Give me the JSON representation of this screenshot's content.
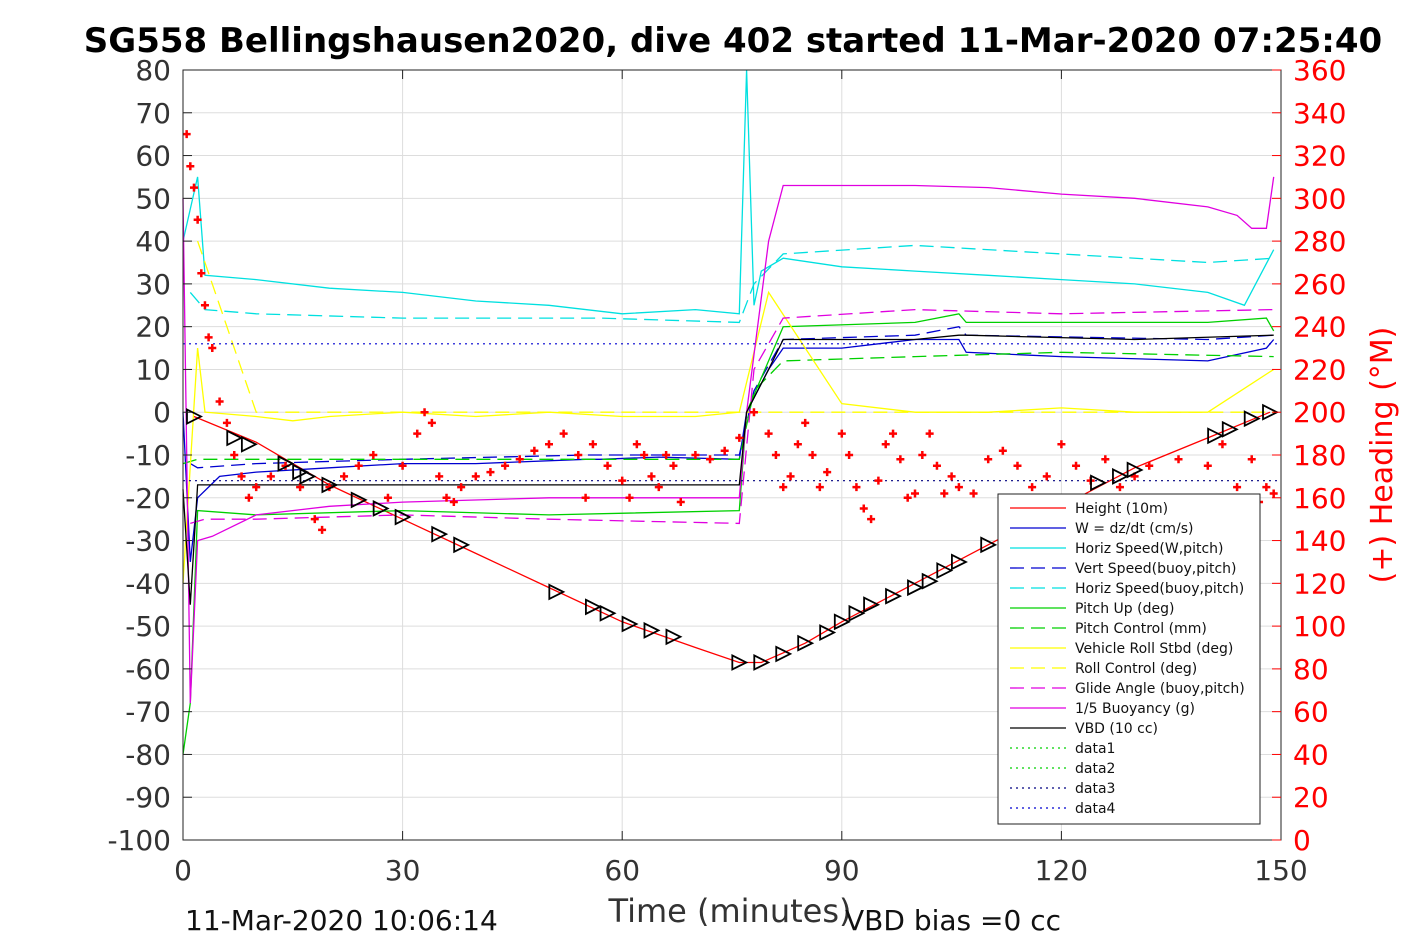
{
  "chart_data": {
    "type": "line",
    "title": "SG558 Bellingshausen2020, dive 402 started 11-Mar-2020 07:25:40",
    "xlabel": "Time (minutes)",
    "ylabel_right": "(+) Heading (°M)",
    "footer_left": "11-Mar-2020 10:06:14",
    "footer_right": "VBD bias =0 cc",
    "xlim": [
      0,
      150
    ],
    "ylim": [
      -100,
      80
    ],
    "ylim_right": [
      0,
      360
    ],
    "x_ticks": [
      "0",
      "30",
      "60",
      "90",
      "120",
      "150"
    ],
    "y_ticks": [
      "80",
      "70",
      "60",
      "50",
      "40",
      "30",
      "20",
      "10",
      "0",
      "-10",
      "-20",
      "-30",
      "-40",
      "-50",
      "-60",
      "-70",
      "-80",
      "-90",
      "-100"
    ],
    "y_ticks_right": [
      "360",
      "340",
      "320",
      "300",
      "280",
      "260",
      "240",
      "220",
      "200",
      "180",
      "160",
      "140",
      "120",
      "100",
      "80",
      "60",
      "40",
      "20",
      "0"
    ],
    "grid": true,
    "legend_position": "lower-right",
    "series": [
      {
        "name": "Height (10m)",
        "color": "#ff0000",
        "style": "solid",
        "x": [
          1.5,
          10,
          20,
          30,
          40,
          50,
          60,
          70,
          76,
          79,
          85,
          90,
          100,
          110,
          120,
          130,
          140,
          148.5
        ],
        "y": [
          -1,
          -7,
          -17,
          -25,
          -33,
          -41,
          -49,
          -55,
          -58.5,
          -58.5,
          -54,
          -49,
          -40,
          -31,
          -22,
          -13,
          -6,
          0
        ]
      },
      {
        "name": "W = dz/dt (cm/s)",
        "color": "#0000d0",
        "style": "solid",
        "x": [
          0,
          1,
          2,
          5,
          10,
          20,
          30,
          40,
          55,
          57,
          65,
          76,
          77,
          80,
          82,
          90,
          100,
          106,
          107,
          120,
          140,
          148,
          149
        ],
        "y": [
          0,
          -35,
          -20,
          -15,
          -14,
          -13,
          -12,
          -12,
          -11,
          -11,
          -10.5,
          -11,
          0,
          10,
          15,
          15,
          17,
          17,
          14,
          13,
          12,
          15,
          17
        ]
      },
      {
        "name": "Horiz Speed(W,pitch)",
        "color": "#00e0e0",
        "style": "solid",
        "x": [
          0,
          2,
          3,
          10,
          20,
          30,
          40,
          50,
          60,
          70,
          76,
          77,
          78,
          79,
          82,
          90,
          100,
          110,
          120,
          130,
          140,
          145,
          149
        ],
        "y": [
          40,
          55,
          32,
          31,
          29,
          28,
          26,
          25,
          23,
          24,
          23,
          80,
          25,
          33,
          36,
          34,
          33,
          32,
          31,
          30,
          28,
          25,
          38
        ]
      },
      {
        "name": "Vert Speed(buoy,pitch)",
        "color": "#0000d0",
        "style": "dash",
        "x": [
          1,
          2,
          10,
          30,
          55,
          57,
          76,
          78,
          82,
          100,
          106,
          107,
          140,
          149
        ],
        "y": [
          -12,
          -13,
          -12,
          -11,
          -10,
          -10,
          -10,
          5,
          17,
          18,
          20,
          18,
          17,
          18
        ]
      },
      {
        "name": "Horiz Speed(buoy,pitch)",
        "color": "#00e0e0",
        "style": "dash",
        "x": [
          1,
          3,
          10,
          30,
          55,
          57,
          76,
          78,
          82,
          100,
          140,
          149
        ],
        "y": [
          28,
          24,
          23,
          22,
          22,
          22,
          21,
          30,
          37,
          39,
          35,
          36
        ]
      },
      {
        "name": "Pitch Up (deg)",
        "color": "#00d000",
        "style": "solid",
        "x": [
          0,
          1,
          2,
          10,
          30,
          50,
          76,
          77,
          82,
          100,
          106,
          107,
          120,
          140,
          148,
          149
        ],
        "y": [
          -80,
          -68,
          -23,
          -24,
          -23,
          -24,
          -23,
          0,
          20,
          21,
          23,
          21,
          21,
          21,
          22,
          19
        ]
      },
      {
        "name": "Pitch Control (mm)",
        "color": "#00d000",
        "style": "dash",
        "x": [
          0,
          2,
          10,
          30,
          50,
          76,
          78,
          82,
          100,
          120,
          149
        ],
        "y": [
          -12,
          -11,
          -11,
          -11,
          -11,
          -11,
          5,
          12,
          13,
          14,
          13
        ]
      },
      {
        "name": "Vehicle Roll Stbd (deg)",
        "color": "#ffff00",
        "style": "solid",
        "x": [
          0,
          2,
          3,
          10,
          15,
          20,
          30,
          40,
          50,
          60,
          70,
          76,
          80,
          90,
          100,
          110,
          120,
          130,
          140,
          149
        ],
        "y": [
          -40,
          15,
          0,
          -1,
          -2,
          -1,
          0,
          -1,
          0,
          -1,
          -1,
          0,
          28,
          2,
          0,
          0,
          1,
          0,
          0,
          10
        ]
      },
      {
        "name": "Roll Control (deg)",
        "color": "#ffff00",
        "style": "dash",
        "x": [
          2,
          10,
          20,
          30,
          40,
          50,
          60,
          70,
          76,
          80,
          90,
          100,
          110,
          120,
          130,
          140,
          149
        ],
        "y": [
          40,
          0,
          0,
          0,
          0,
          0,
          0,
          0,
          0,
          0,
          0,
          0,
          0,
          0,
          0,
          0,
          0
        ]
      },
      {
        "name": "Glide Angle (buoy,pitch)",
        "color": "#e000e0",
        "style": "dash",
        "x": [
          1,
          3,
          10,
          30,
          50,
          76,
          78,
          82,
          100,
          120,
          149
        ],
        "y": [
          -26,
          -25,
          -25,
          -24,
          -25,
          -26,
          10,
          22,
          24,
          23,
          24
        ]
      },
      {
        "name": "1/5 Buoyancy (g)",
        "color": "#e000e0",
        "style": "solid",
        "x": [
          0,
          1,
          2,
          4,
          10,
          20,
          30,
          50,
          76,
          77,
          80,
          82,
          90,
          100,
          110,
          120,
          130,
          140,
          144,
          146,
          148,
          149
        ],
        "y": [
          50,
          -68,
          -30,
          -29,
          -24,
          -22,
          -21,
          -20,
          -20,
          0,
          40,
          53,
          53,
          53,
          52.5,
          51,
          50,
          48,
          46,
          43,
          43,
          55
        ]
      },
      {
        "name": "VBD (10 cc)",
        "color": "#000000",
        "style": "solid",
        "x": [
          0,
          1,
          2,
          30,
          50,
          76,
          77,
          80,
          82,
          100,
          106,
          107,
          130,
          149
        ],
        "y": [
          -18,
          -45,
          -17,
          -17,
          -17,
          -17,
          0,
          10,
          17,
          17,
          18,
          18,
          17,
          18
        ]
      },
      {
        "name": "data1",
        "color": "#00d000",
        "style": "dot",
        "x": [],
        "y": []
      },
      {
        "name": "data2",
        "color": "#00d000",
        "style": "dot",
        "x": [],
        "y": []
      },
      {
        "name": "data3",
        "color": "#000080",
        "style": "dot",
        "x": [
          0,
          150
        ],
        "y": [
          -16,
          -16
        ]
      },
      {
        "name": "data4",
        "color": "#0000d0",
        "style": "dot",
        "x": [
          0,
          150
        ],
        "y": [
          16,
          16
        ]
      }
    ],
    "heading_markers": {
      "color": "#ff0000",
      "axis": "right",
      "x": [
        0.5,
        1,
        1.5,
        2,
        2.5,
        3,
        3.5,
        4,
        5,
        6,
        7,
        8,
        9,
        10,
        12,
        14,
        16,
        18,
        19,
        20,
        22,
        24,
        26,
        28,
        30,
        32,
        33,
        34,
        35,
        36,
        37,
        38,
        40,
        42,
        44,
        46,
        48,
        50,
        52,
        54,
        55,
        56,
        58,
        60,
        61,
        62,
        63,
        64,
        65,
        66,
        67,
        68,
        70,
        72,
        74,
        76,
        78,
        80,
        81,
        82,
        83,
        84,
        85,
        86,
        87,
        88,
        90,
        91,
        92,
        93,
        94,
        95,
        96,
        97,
        98,
        99,
        100,
        101,
        102,
        103,
        104,
        105,
        106,
        108,
        110,
        112,
        114,
        116,
        118,
        120,
        122,
        124,
        126,
        128,
        130,
        132,
        134,
        136,
        138,
        140,
        142,
        144,
        146,
        147,
        148,
        149
      ],
      "y": [
        330,
        315,
        305,
        290,
        265,
        250,
        235,
        230,
        205,
        195,
        180,
        170,
        160,
        165,
        170,
        175,
        165,
        150,
        145,
        165,
        170,
        175,
        180,
        160,
        175,
        190,
        200,
        195,
        170,
        160,
        158,
        165,
        170,
        172,
        175,
        178,
        182,
        185,
        190,
        180,
        160,
        185,
        175,
        168,
        160,
        185,
        180,
        170,
        165,
        180,
        175,
        158,
        180,
        178,
        182,
        188,
        200,
        190,
        180,
        165,
        170,
        185,
        195,
        180,
        165,
        172,
        190,
        180,
        165,
        155,
        150,
        168,
        185,
        190,
        178,
        160,
        162,
        180,
        190,
        175,
        162,
        170,
        165,
        162,
        178,
        182,
        175,
        165,
        170,
        185,
        175,
        168,
        178,
        165,
        170,
        175,
        160,
        178,
        160,
        175,
        185,
        165,
        178,
        158,
        165,
        162
      ]
    },
    "height_markers": {
      "color": "#000000",
      "x": [
        1.5,
        7,
        9,
        14,
        16,
        17,
        20,
        24,
        27,
        30,
        35,
        38,
        51,
        56,
        58,
        61,
        64,
        67,
        76,
        79,
        82,
        85,
        88,
        90,
        92,
        94,
        97,
        100,
        102,
        104,
        106,
        110,
        113,
        125,
        128,
        130,
        141,
        143,
        146,
        148.5
      ],
      "y": [
        -1,
        -6,
        -7.5,
        -12,
        -14,
        -15,
        -17,
        -20.5,
        -22.5,
        -24.5,
        -28.5,
        -31,
        -42,
        -45.5,
        -47,
        -49.5,
        -51,
        -52.5,
        -58.5,
        -58.5,
        -56.5,
        -54,
        -51.5,
        -49,
        -47,
        -45,
        -43,
        -41,
        -39.5,
        -37,
        -35,
        -31,
        -29,
        -16.5,
        -15,
        -13.5,
        -5.5,
        -4,
        -1.5,
        0
      ]
    }
  }
}
